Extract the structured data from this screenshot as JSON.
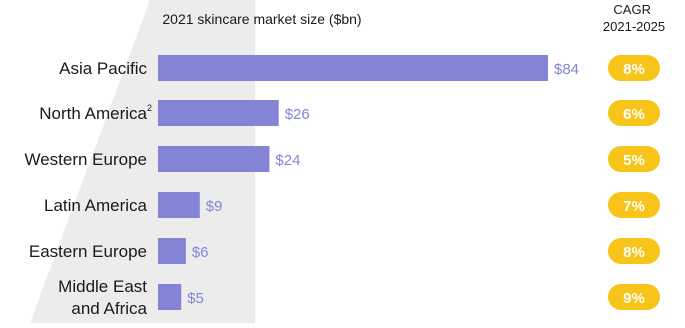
{
  "chart_data": {
    "type": "bar",
    "orientation": "horizontal",
    "title": "2021 skincare market size ($bn)",
    "categories": [
      "Asia Pacific",
      "North America",
      "Western Europe",
      "Latin America",
      "Eastern Europe",
      "Middle East and Africa"
    ],
    "category_lines": [
      [
        "Asia Pacific"
      ],
      [
        "North America"
      ],
      [
        "Western Europe"
      ],
      [
        "Latin America"
      ],
      [
        "Eastern Europe"
      ],
      [
        "Middle East",
        "and Africa"
      ]
    ],
    "category_superscripts": [
      "",
      "2",
      "",
      "",
      "",
      ""
    ],
    "values": [
      84,
      26,
      24,
      9,
      6,
      5
    ],
    "value_labels": [
      "$84",
      "$26",
      "$24",
      "$9",
      "$6",
      "$5"
    ],
    "xlim": [
      0,
      84
    ],
    "grid": false,
    "side_column": {
      "title_lines": [
        "CAGR",
        "2021-2025"
      ],
      "values": [
        8,
        6,
        5,
        7,
        8,
        9
      ],
      "labels": [
        "8%",
        "6%",
        "5%",
        "7%",
        "8%",
        "9%"
      ]
    },
    "colors": {
      "bar": "#8484d6",
      "value_label": "#8484d6",
      "pill": "#f7c51a",
      "pill_text": "#ffffff",
      "band": "#ececec",
      "text": "#1a1a1a"
    }
  }
}
